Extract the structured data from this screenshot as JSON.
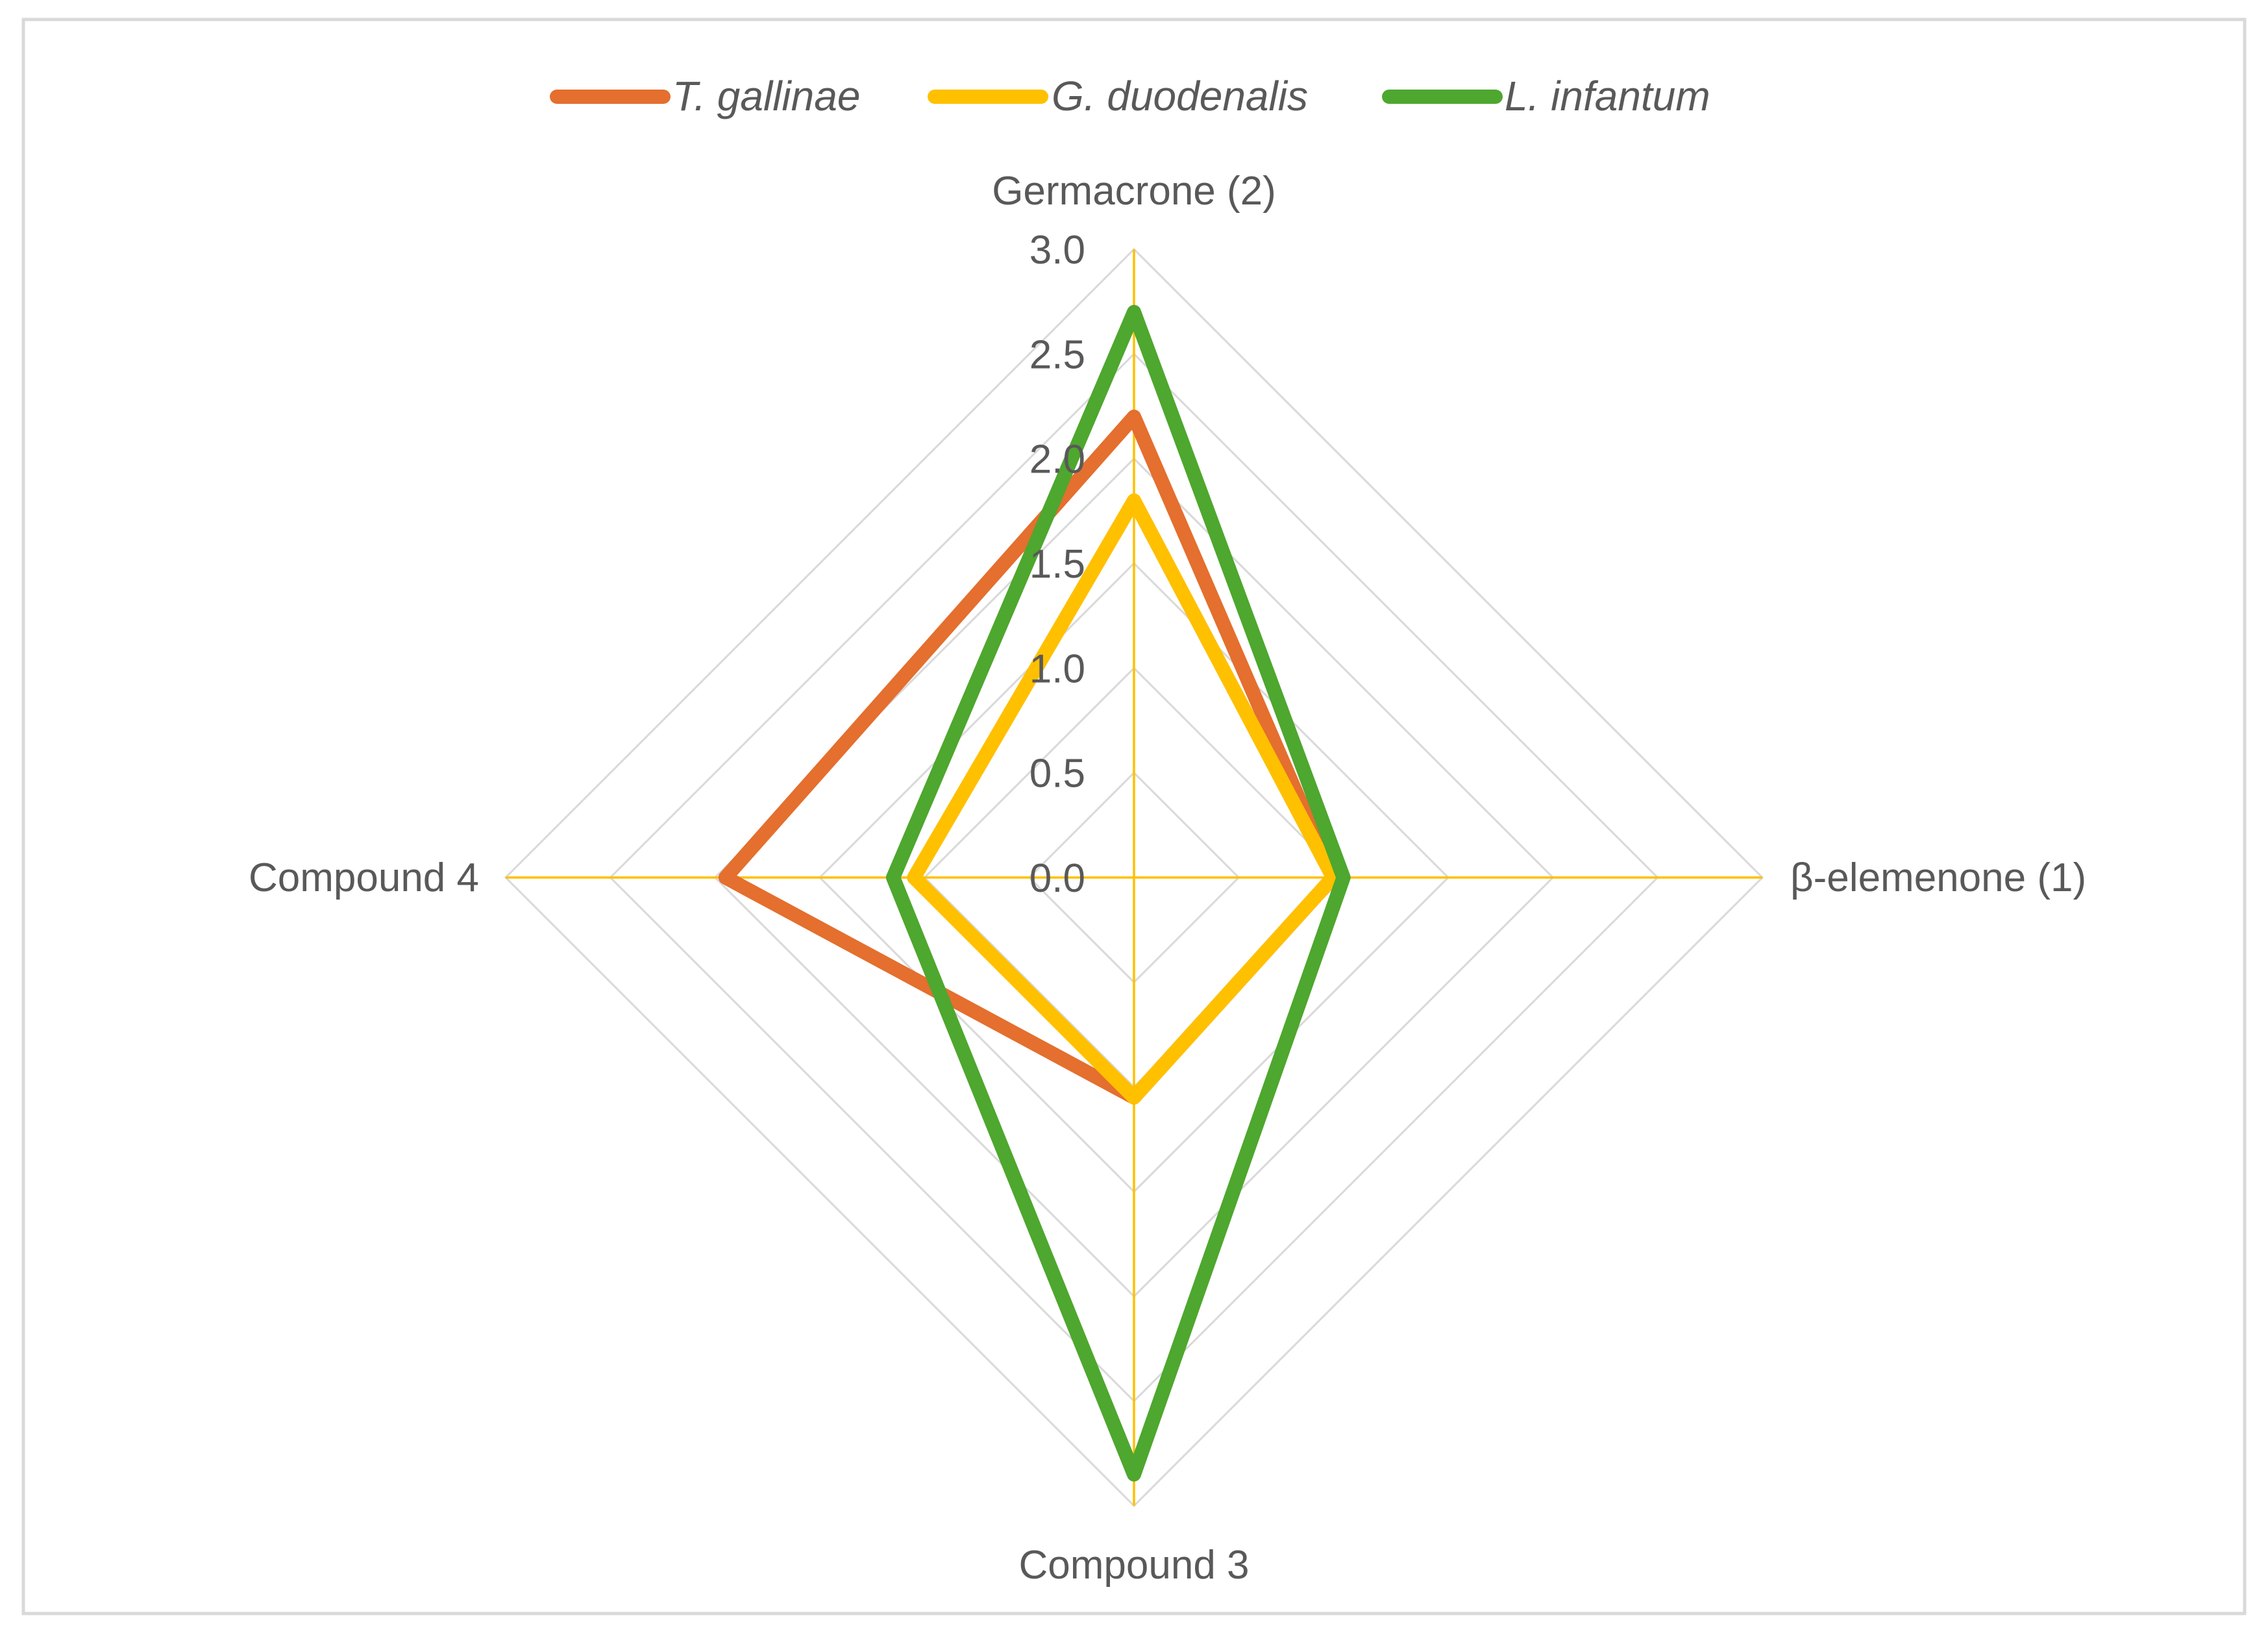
{
  "chart_data": {
    "type": "radar",
    "categories": [
      "Germacrone (2)",
      "β-elemenone (1)",
      "Compound 3",
      "Compound 4"
    ],
    "series": [
      {
        "name": "T. gallinae",
        "color": "#E46F2E",
        "values": [
          2.2,
          0.95,
          1.05,
          1.95
        ]
      },
      {
        "name": "G. duodenalis",
        "color": "#FFC000",
        "values": [
          1.8,
          0.95,
          1.05,
          1.05
        ]
      },
      {
        "name": "L. infantum",
        "color": "#4EA72E",
        "values": [
          2.7,
          1.0,
          2.85,
          1.15
        ]
      }
    ],
    "radial_ticks": [
      "0.0",
      "0.5",
      "1.0",
      "1.5",
      "2.0",
      "2.5",
      "3.0"
    ],
    "rmin": 0,
    "rmax": 3.0,
    "axis_color": "#FFC000",
    "grid_color": "#D9D9D9",
    "grid": true,
    "legend_position": "top"
  }
}
